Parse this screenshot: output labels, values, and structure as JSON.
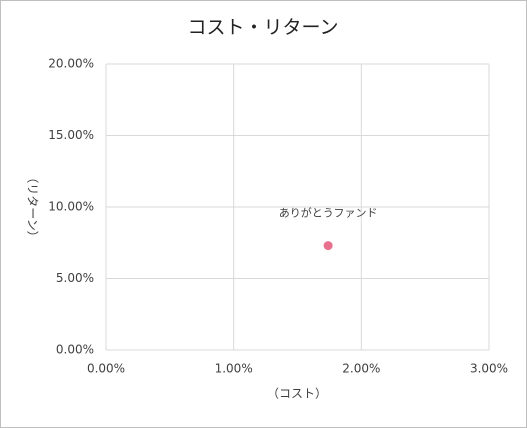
{
  "chart_data": {
    "type": "scatter",
    "title": "コスト・リターン",
    "x_label": "（コスト）",
    "y_label": "（リターン）",
    "series": [
      {
        "name": "ありがとうファンド",
        "color": "#e8718d",
        "x": [
          1.74
        ],
        "values": [
          7.3
        ]
      }
    ],
    "xlim": [
      0,
      3
    ],
    "xticks": [
      {
        "value": 0,
        "label": "0.00%"
      },
      {
        "value": 1,
        "label": "1.00%"
      },
      {
        "value": 2,
        "label": "2.00%"
      },
      {
        "value": 3,
        "label": "3.00%"
      }
    ],
    "ylim": [
      0,
      20
    ],
    "yticks": [
      {
        "value": 0,
        "label": "0.00%"
      },
      {
        "value": 5,
        "label": "5.00%"
      },
      {
        "value": 10,
        "label": "10.00%"
      },
      {
        "value": 15,
        "label": "15.00%"
      },
      {
        "value": 20,
        "label": "20.00%"
      }
    ],
    "grid": true
  }
}
